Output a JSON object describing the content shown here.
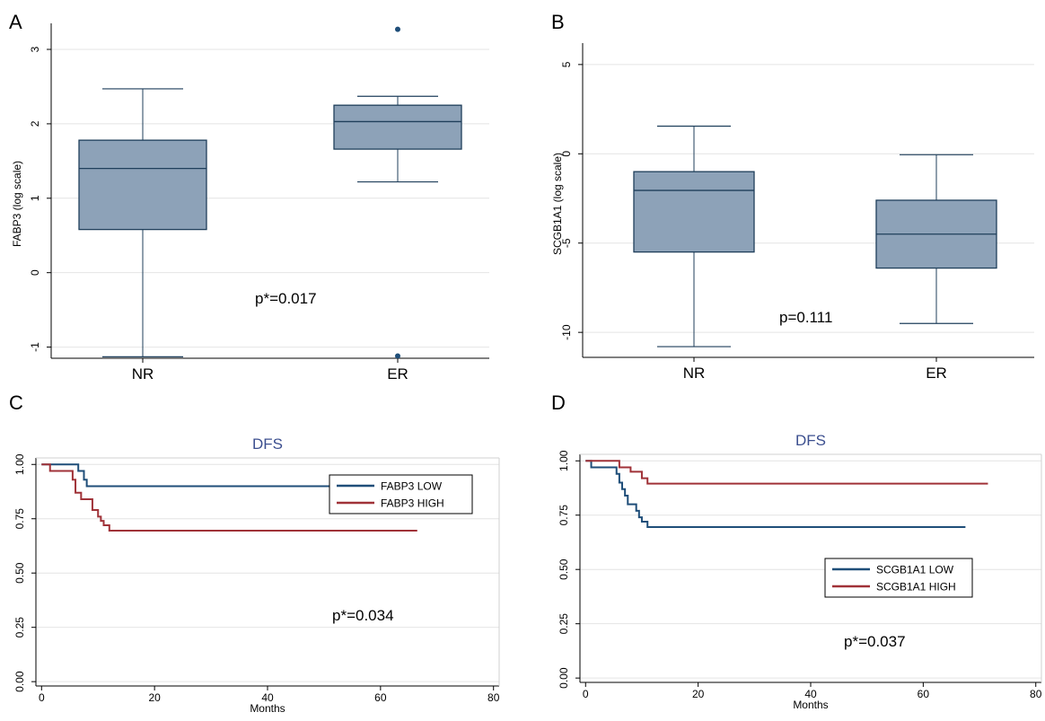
{
  "panels": [
    {
      "letter": "A"
    },
    {
      "letter": "B"
    },
    {
      "letter": "C"
    },
    {
      "letter": "D"
    }
  ],
  "chart_data": [
    {
      "type": "box",
      "ylabel": "FABP3 (log scale)",
      "categories": [
        "NR",
        "ER"
      ],
      "ylim": [
        -1.15,
        3.35
      ],
      "yticks": [
        -1,
        0,
        1,
        2,
        3
      ],
      "grid": true,
      "boxes": [
        {
          "label": "NR",
          "whisker_low": -1.13,
          "q1": 0.58,
          "median": 1.4,
          "q3": 1.78,
          "whisker_high": 2.47,
          "outliers": []
        },
        {
          "label": "ER",
          "whisker_low": 1.22,
          "q1": 1.66,
          "median": 2.03,
          "q3": 2.25,
          "whisker_high": 2.37,
          "outliers": [
            3.27,
            -1.12
          ]
        }
      ],
      "annotation": "p*=0.017",
      "colors": {
        "box": "#8da2b8",
        "line": "#1f3f5b",
        "outlier": "#1f4e79"
      }
    },
    {
      "type": "box",
      "ylabel": "SCGB1A1 (log scale)",
      "categories": [
        "NR",
        "ER"
      ],
      "ylim": [
        -11.4,
        6.2
      ],
      "yticks": [
        5,
        0,
        -5,
        -10
      ],
      "grid": true,
      "boxes": [
        {
          "label": "NR",
          "whisker_low": -10.8,
          "q1": -5.5,
          "median": -2.05,
          "q3": -1.0,
          "whisker_high": 1.55,
          "outliers": []
        },
        {
          "label": "ER",
          "whisker_low": -9.5,
          "q1": -6.4,
          "median": -4.5,
          "q3": -2.6,
          "whisker_high": -0.05,
          "outliers": []
        }
      ],
      "annotation": "p=0.111",
      "colors": {
        "box": "#8da2b8",
        "line": "#1f3f5b",
        "outlier": "#1f4e79"
      }
    },
    {
      "type": "line",
      "title": "DFS",
      "xlabel": "Months",
      "xlim": [
        -1,
        81
      ],
      "ylim": [
        -0.02,
        1.03
      ],
      "xticks": [
        0,
        20,
        40,
        60,
        80
      ],
      "yticks": [
        0.0,
        0.25,
        0.5,
        0.75,
        1.0
      ],
      "ytick_labels": [
        "0.00",
        "0.25",
        "0.50",
        "0.75",
        "1.00"
      ],
      "grid": true,
      "legend_position": "right",
      "series": [
        {
          "name": "FABP3 LOW",
          "color": "#1f4e79",
          "x": [
            0,
            6,
            6.5,
            7,
            7.5,
            8,
            71.5
          ],
          "y": [
            1.0,
            1.0,
            0.97,
            0.97,
            0.93,
            0.9,
            0.9
          ]
        },
        {
          "name": "FABP3 HIGH",
          "color": "#a03238",
          "x": [
            0,
            1,
            1.5,
            5,
            5.5,
            6,
            7,
            8,
            9,
            10,
            10.5,
            11,
            12,
            66.5
          ],
          "y": [
            1.0,
            1.0,
            0.97,
            0.97,
            0.93,
            0.87,
            0.84,
            0.84,
            0.79,
            0.76,
            0.74,
            0.72,
            0.695,
            0.695
          ]
        }
      ],
      "annotation": "p*=0.034"
    },
    {
      "type": "line",
      "title": "DFS",
      "xlabel": "Months",
      "xlim": [
        -1,
        81
      ],
      "ylim": [
        -0.02,
        1.03
      ],
      "xticks": [
        0,
        20,
        40,
        60,
        80
      ],
      "yticks": [
        0.0,
        0.25,
        0.5,
        0.75,
        1.0
      ],
      "ytick_labels": [
        "0.00",
        "0.25",
        "0.50",
        "0.75",
        "1.00"
      ],
      "grid": true,
      "legend_position": "right",
      "series": [
        {
          "name": "SCGB1A1 LOW",
          "color": "#1f4e79",
          "x": [
            0,
            1,
            5,
            5.5,
            6,
            6.5,
            7,
            7.5,
            8,
            9,
            9.5,
            10,
            11,
            67.5
          ],
          "y": [
            1.0,
            0.97,
            0.97,
            0.94,
            0.9,
            0.87,
            0.84,
            0.8,
            0.8,
            0.77,
            0.74,
            0.72,
            0.695,
            0.695
          ]
        },
        {
          "name": "SCGB1A1 HIGH",
          "color": "#a03238",
          "x": [
            0,
            5,
            6,
            8,
            9,
            10,
            11,
            71.5
          ],
          "y": [
            1.0,
            1.0,
            0.97,
            0.95,
            0.95,
            0.92,
            0.895,
            0.895
          ]
        }
      ],
      "annotation": "p*=0.037"
    }
  ]
}
